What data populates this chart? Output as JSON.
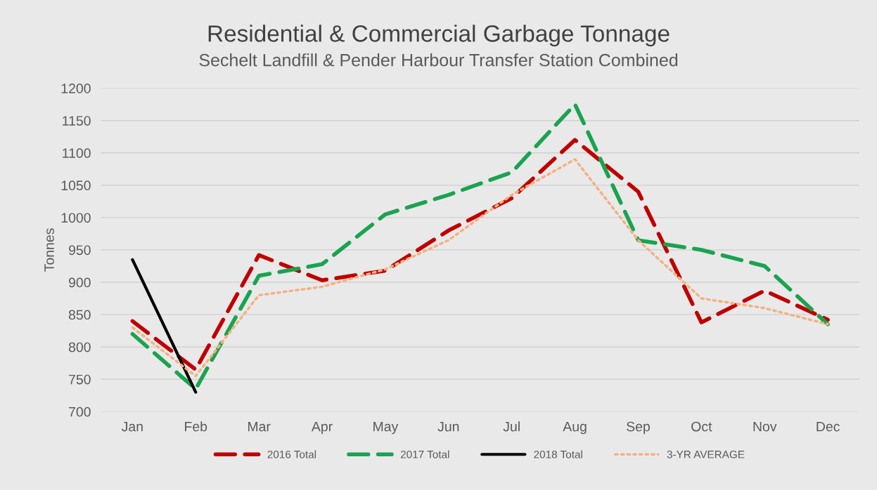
{
  "chart_data": {
    "type": "line",
    "title": "Residential & Commercial Garbage Tonnage",
    "subtitle": "Sechelt Landfill & Pender Harbour Transfer Station Combined",
    "ylabel": "Tonnes",
    "categories": [
      "Jan",
      "Feb",
      "Mar",
      "Apr",
      "May",
      "Jun",
      "Jul",
      "Aug",
      "Sep",
      "Oct",
      "Nov",
      "Dec"
    ],
    "series": [
      {
        "name": "2016 Total",
        "color": "#c00000",
        "line_style": "dashed",
        "values": [
          840,
          765,
          942,
          903,
          918,
          980,
          1030,
          1120,
          1040,
          838,
          887,
          842
        ]
      },
      {
        "name": "2017 Total",
        "color": "#1aa350",
        "line_style": "dashed",
        "values": [
          820,
          735,
          910,
          928,
          1005,
          1035,
          1070,
          1175,
          965,
          950,
          925,
          835
        ]
      },
      {
        "name": "2018 Total",
        "color": "#000000",
        "line_style": "solid",
        "values": [
          935,
          730,
          null,
          null,
          null,
          null,
          null,
          null,
          null,
          null,
          null,
          null
        ]
      },
      {
        "name": "3-YR AVERAGE",
        "color": "#f4b183",
        "line_style": "dotted",
        "values": [
          830,
          755,
          880,
          893,
          920,
          965,
          1035,
          1090,
          965,
          875,
          860,
          835
        ]
      }
    ],
    "ylim": [
      700,
      1200
    ],
    "yticks": [
      700,
      750,
      800,
      850,
      900,
      950,
      1000,
      1050,
      1100,
      1150,
      1200
    ],
    "grid": "y",
    "legend": "bottom",
    "marker": "none"
  }
}
